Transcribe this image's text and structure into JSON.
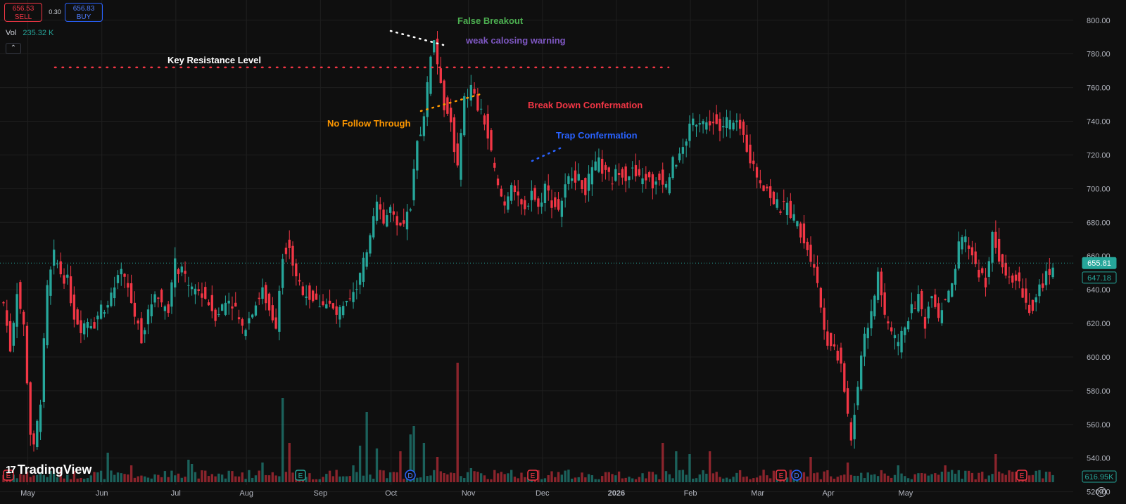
{
  "trade": {
    "sell_price": "656.53",
    "sell_label": "SELL",
    "buy_price": "656.83",
    "buy_label": "BUY",
    "spread": "0.30"
  },
  "volume": {
    "label": "Vol",
    "value": "235.32 K"
  },
  "brand": "TradingView",
  "colors": {
    "up": "#26a69a",
    "down": "#f23645",
    "background": "#0f0f0f",
    "grid": "#1f1f1f"
  },
  "chart_data": {
    "type": "candlestick",
    "title": "",
    "ylim": [
      524,
      812
    ],
    "y_ticks": [
      "800.00",
      "780.00",
      "760.00",
      "740.00",
      "720.00",
      "700.00",
      "680.00",
      "660.00",
      "640.00",
      "620.00",
      "600.00",
      "580.00",
      "560.00",
      "540.00",
      "520.00"
    ],
    "x_labels": [
      "May",
      "Jun",
      "Jul",
      "Aug",
      "Sep",
      "Oct",
      "Nov",
      "Dec",
      "2026",
      "Feb",
      "Mar",
      "Apr",
      "May"
    ],
    "price_markers": {
      "last": "655.81",
      "secondary": "647.18",
      "volume_last": "616.95K"
    },
    "event_markers": [
      "E",
      "E",
      "D",
      "E",
      "E",
      "D",
      "E"
    ],
    "annotations": [
      {
        "text": "False Breakout",
        "color": "#4caf50"
      },
      {
        "text": "weak calosing warning",
        "color": "#7e57c2"
      },
      {
        "text": "Key Resistance Level",
        "color": "#ffffff"
      },
      {
        "text": "Break Down Confermation",
        "color": "#f23645"
      },
      {
        "text": "No Follow Through",
        "color": "#ff9800"
      },
      {
        "text": "Trap Confermation",
        "color": "#2962ff"
      }
    ],
    "key_resistance_level": 772,
    "anchors": [
      [
        0,
        632
      ],
      [
        2,
        605
      ],
      [
        4,
        640
      ],
      [
        6,
        618
      ],
      [
        8,
        555
      ],
      [
        9,
        545
      ],
      [
        11,
        575
      ],
      [
        13,
        640
      ],
      [
        15,
        660
      ],
      [
        17,
        650
      ],
      [
        19,
        645
      ],
      [
        21,
        625
      ],
      [
        23,
        618
      ],
      [
        25,
        622
      ],
      [
        27,
        620
      ],
      [
        29,
        630
      ],
      [
        31,
        630
      ],
      [
        33,
        640
      ],
      [
        35,
        650
      ],
      [
        37,
        640
      ],
      [
        39,
        625
      ],
      [
        41,
        612
      ],
      [
        43,
        625
      ],
      [
        45,
        640
      ],
      [
        47,
        632
      ],
      [
        49,
        630
      ],
      [
        51,
        655
      ],
      [
        53,
        650
      ],
      [
        55,
        642
      ],
      [
        57,
        640
      ],
      [
        59,
        638
      ],
      [
        61,
        632
      ],
      [
        63,
        625
      ],
      [
        65,
        630
      ],
      [
        67,
        635
      ],
      [
        69,
        628
      ],
      [
        71,
        615
      ],
      [
        73,
        625
      ],
      [
        75,
        632
      ],
      [
        77,
        640
      ],
      [
        79,
        628
      ],
      [
        81,
        620
      ],
      [
        83,
        662
      ],
      [
        85,
        668
      ],
      [
        87,
        645
      ],
      [
        89,
        640
      ],
      [
        91,
        636
      ],
      [
        93,
        632
      ],
      [
        95,
        633
      ],
      [
        97,
        630
      ],
      [
        99,
        625
      ],
      [
        101,
        628
      ],
      [
        103,
        632
      ],
      [
        105,
        642
      ],
      [
        107,
        655
      ],
      [
        109,
        675
      ],
      [
        111,
        695
      ],
      [
        113,
        680
      ],
      [
        115,
        688
      ],
      [
        117,
        675
      ],
      [
        119,
        678
      ],
      [
        121,
        690
      ],
      [
        123,
        728
      ],
      [
        125,
        742
      ],
      [
        126,
        760
      ],
      [
        127,
        780
      ],
      [
        128,
        790
      ],
      [
        129,
        775
      ],
      [
        130,
        765
      ],
      [
        131,
        750
      ],
      [
        133,
        740
      ],
      [
        135,
        710
      ],
      [
        137,
        752
      ],
      [
        139,
        760
      ],
      [
        141,
        748
      ],
      [
        143,
        740
      ],
      [
        145,
        720
      ],
      [
        147,
        700
      ],
      [
        149,
        690
      ],
      [
        151,
        705
      ],
      [
        153,
        692
      ],
      [
        155,
        686
      ],
      [
        157,
        700
      ],
      [
        159,
        688
      ],
      [
        161,
        702
      ],
      [
        163,
        692
      ],
      [
        165,
        688
      ],
      [
        167,
        700
      ],
      [
        169,
        710
      ],
      [
        171,
        705
      ],
      [
        173,
        700
      ],
      [
        175,
        710
      ],
      [
        177,
        715
      ],
      [
        179,
        708
      ],
      [
        181,
        705
      ],
      [
        183,
        712
      ],
      [
        185,
        708
      ],
      [
        187,
        710
      ],
      [
        189,
        705
      ],
      [
        191,
        707
      ],
      [
        193,
        702
      ],
      [
        195,
        708
      ],
      [
        197,
        702
      ],
      [
        199,
        715
      ],
      [
        201,
        718
      ],
      [
        203,
        730
      ],
      [
        205,
        740
      ],
      [
        207,
        742
      ],
      [
        209,
        738
      ],
      [
        211,
        742
      ],
      [
        213,
        735
      ],
      [
        215,
        740
      ],
      [
        217,
        738
      ],
      [
        219,
        735
      ],
      [
        221,
        725
      ],
      [
        223,
        712
      ],
      [
        225,
        705
      ],
      [
        227,
        700
      ],
      [
        229,
        692
      ],
      [
        231,
        688
      ],
      [
        233,
        690
      ],
      [
        235,
        682
      ],
      [
        237,
        675
      ],
      [
        239,
        665
      ],
      [
        241,
        655
      ],
      [
        243,
        630
      ],
      [
        245,
        610
      ],
      [
        247,
        605
      ],
      [
        249,
        598
      ],
      [
        251,
        565
      ],
      [
        252,
        548
      ],
      [
        254,
        585
      ],
      [
        256,
        615
      ],
      [
        258,
        625
      ],
      [
        260,
        650
      ],
      [
        262,
        625
      ],
      [
        264,
        615
      ],
      [
        266,
        605
      ],
      [
        268,
        620
      ],
      [
        270,
        628
      ],
      [
        272,
        635
      ],
      [
        274,
        620
      ],
      [
        276,
        640
      ],
      [
        278,
        625
      ],
      [
        280,
        635
      ],
      [
        282,
        640
      ],
      [
        284,
        665
      ],
      [
        286,
        670
      ],
      [
        288,
        660
      ],
      [
        290,
        650
      ],
      [
        292,
        645
      ],
      [
        294,
        672
      ],
      [
        296,
        660
      ],
      [
        298,
        652
      ],
      [
        300,
        648
      ],
      [
        302,
        645
      ],
      [
        304,
        632
      ],
      [
        306,
        628
      ],
      [
        308,
        640
      ],
      [
        310,
        648
      ],
      [
        312,
        655
      ]
    ],
    "volume_spikes": [
      [
        31,
        21
      ],
      [
        38,
        12
      ],
      [
        55,
        16
      ],
      [
        56,
        13
      ],
      [
        77,
        14
      ],
      [
        83,
        60
      ],
      [
        85,
        28
      ],
      [
        104,
        12
      ],
      [
        106,
        26
      ],
      [
        108,
        50
      ],
      [
        111,
        24
      ],
      [
        118,
        22
      ],
      [
        121,
        34
      ],
      [
        122,
        40
      ],
      [
        125,
        28
      ],
      [
        129,
        18
      ],
      [
        135,
        85
      ],
      [
        139,
        10
      ],
      [
        196,
        28
      ],
      [
        200,
        22
      ],
      [
        204,
        20
      ],
      [
        210,
        22
      ],
      [
        240,
        18
      ],
      [
        251,
        14
      ],
      [
        266,
        12
      ],
      [
        280,
        12
      ],
      [
        295,
        20
      ]
    ]
  }
}
